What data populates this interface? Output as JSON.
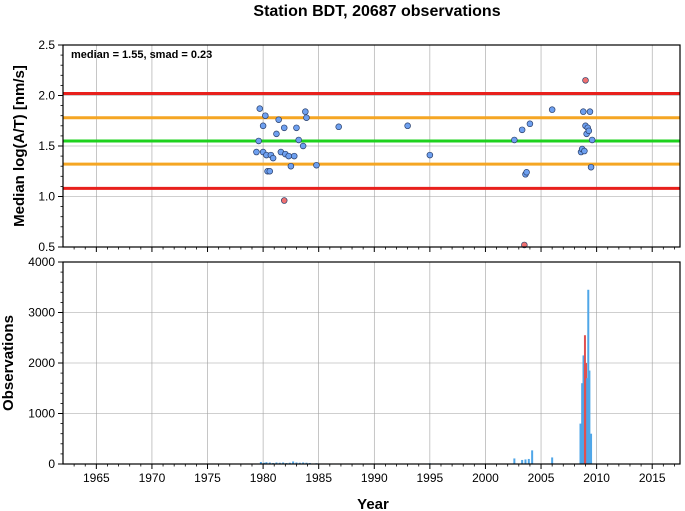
{
  "chart_data": [
    {
      "type": "scatter",
      "title": "Station BDT, 20687 observations",
      "xlabel": "",
      "ylabel": "Median log(A/T) [nm/s]",
      "annotation": "median = 1.55, smad = 0.23",
      "xlim": [
        1962,
        2017.5
      ],
      "ylim": [
        0.5,
        2.5
      ],
      "yticks": [
        "0.5",
        "1.0",
        "1.5",
        "2.0",
        "2.5"
      ],
      "grid": true,
      "reference_lines": [
        {
          "y": 2.02,
          "color": "#e8201c"
        },
        {
          "y": 1.78,
          "color": "#f5a623"
        },
        {
          "y": 1.55,
          "color": "#1ed21e"
        },
        {
          "y": 1.32,
          "color": "#f5a623"
        },
        {
          "y": 1.08,
          "color": "#e8201c"
        }
      ],
      "series": [
        {
          "color": "#6ea0f0",
          "points": [
            [
              1979.4,
              1.44
            ],
            [
              1979.6,
              1.55
            ],
            [
              1979.7,
              1.87
            ],
            [
              1980.0,
              1.7
            ],
            [
              1980.0,
              1.44
            ],
            [
              1980.2,
              1.8
            ],
            [
              1980.3,
              1.41
            ],
            [
              1980.4,
              1.25
            ],
            [
              1980.6,
              1.25
            ],
            [
              1980.7,
              1.41
            ],
            [
              1980.9,
              1.38
            ],
            [
              1981.2,
              1.62
            ],
            [
              1981.4,
              1.76
            ],
            [
              1981.6,
              1.44
            ],
            [
              1981.9,
              1.68
            ],
            [
              1982.0,
              1.42
            ],
            [
              1982.3,
              1.4
            ],
            [
              1982.5,
              1.3
            ],
            [
              1982.8,
              1.4
            ],
            [
              1983.0,
              1.68
            ],
            [
              1983.2,
              1.56
            ],
            [
              1983.6,
              1.5
            ],
            [
              1983.8,
              1.84
            ],
            [
              1983.9,
              1.78
            ],
            [
              1984.8,
              1.31
            ],
            [
              1986.8,
              1.69
            ],
            [
              1993.0,
              1.7
            ],
            [
              1995.0,
              1.41
            ],
            [
              2002.6,
              1.56
            ],
            [
              2003.3,
              1.66
            ],
            [
              2003.6,
              1.22
            ],
            [
              2003.7,
              1.24
            ],
            [
              2004.0,
              1.72
            ],
            [
              2006.0,
              1.86
            ],
            [
              2008.6,
              1.44
            ],
            [
              2008.7,
              1.47
            ],
            [
              2008.8,
              1.84
            ],
            [
              2008.9,
              1.45
            ],
            [
              2009.0,
              1.7
            ],
            [
              2009.1,
              1.62
            ],
            [
              2009.2,
              1.68
            ],
            [
              2009.3,
              1.65
            ],
            [
              2009.4,
              1.84
            ],
            [
              2009.5,
              1.29
            ],
            [
              2009.6,
              1.56
            ]
          ]
        },
        {
          "color": "#f07070",
          "points": [
            [
              1981.9,
              0.96
            ],
            [
              2003.5,
              0.52
            ],
            [
              2009.0,
              2.15
            ]
          ]
        }
      ]
    },
    {
      "type": "bar",
      "xlabel": "Year",
      "ylabel": "Observations",
      "xlim": [
        1962,
        2017.5
      ],
      "ylim": [
        0,
        4000
      ],
      "xticks": [
        "1965",
        "1970",
        "1975",
        "1980",
        "1985",
        "1990",
        "1995",
        "2000",
        "2005",
        "2010",
        "2015"
      ],
      "yticks": [
        "0",
        "1000",
        "2000",
        "3000",
        "4000"
      ],
      "grid": true,
      "bars": [
        {
          "x": 1979.8,
          "v": 40,
          "color": "#4fa6e8"
        },
        {
          "x": 1980.1,
          "v": 25,
          "color": "#4fa6e8"
        },
        {
          "x": 1980.3,
          "v": 35,
          "color": "#4fa6e8"
        },
        {
          "x": 1980.6,
          "v": 30,
          "color": "#4fa6e8"
        },
        {
          "x": 1980.9,
          "v": 20,
          "color": "#4fa6e8"
        },
        {
          "x": 1981.2,
          "v": 30,
          "color": "#4fa6e8"
        },
        {
          "x": 1981.5,
          "v": 25,
          "color": "#4fa6e8"
        },
        {
          "x": 1981.8,
          "v": 30,
          "color": "#4fa6e8"
        },
        {
          "x": 1982.1,
          "v": 20,
          "color": "#4fa6e8"
        },
        {
          "x": 1982.4,
          "v": 25,
          "color": "#4fa6e8"
        },
        {
          "x": 1982.7,
          "v": 50,
          "color": "#4fa6e8"
        },
        {
          "x": 1983.0,
          "v": 30,
          "color": "#4fa6e8"
        },
        {
          "x": 1983.3,
          "v": 25,
          "color": "#4fa6e8"
        },
        {
          "x": 1983.6,
          "v": 30,
          "color": "#4fa6e8"
        },
        {
          "x": 1983.9,
          "v": 25,
          "color": "#4fa6e8"
        },
        {
          "x": 1984.2,
          "v": 20,
          "color": "#4fa6e8"
        },
        {
          "x": 1984.8,
          "v": 15,
          "color": "#4fa6e8"
        },
        {
          "x": 1986.8,
          "v": 10,
          "color": "#4fa6e8"
        },
        {
          "x": 1993.0,
          "v": 10,
          "color": "#4fa6e8"
        },
        {
          "x": 1995.0,
          "v": 15,
          "color": "#4fa6e8"
        },
        {
          "x": 2002.6,
          "v": 110,
          "color": "#4fa6e8"
        },
        {
          "x": 2003.3,
          "v": 80,
          "color": "#4fa6e8"
        },
        {
          "x": 2003.6,
          "v": 90,
          "color": "#4fa6e8"
        },
        {
          "x": 2003.9,
          "v": 100,
          "color": "#4fa6e8"
        },
        {
          "x": 2004.2,
          "v": 270,
          "color": "#4fa6e8"
        },
        {
          "x": 2006.0,
          "v": 130,
          "color": "#4fa6e8"
        },
        {
          "x": 2008.55,
          "v": 800,
          "color": "#4fa6e8"
        },
        {
          "x": 2008.7,
          "v": 1600,
          "color": "#4fa6e8"
        },
        {
          "x": 2008.82,
          "v": 2150,
          "color": "#4fa6e8"
        },
        {
          "x": 2008.95,
          "v": 2550,
          "color": "#e05050"
        },
        {
          "x": 2009.05,
          "v": 2000,
          "color": "#e05050"
        },
        {
          "x": 2009.15,
          "v": 1700,
          "color": "#4fa6e8"
        },
        {
          "x": 2009.25,
          "v": 3450,
          "color": "#4fa6e8"
        },
        {
          "x": 2009.35,
          "v": 1850,
          "color": "#4fa6e8"
        },
        {
          "x": 2009.5,
          "v": 600,
          "color": "#4fa6e8"
        }
      ]
    }
  ]
}
